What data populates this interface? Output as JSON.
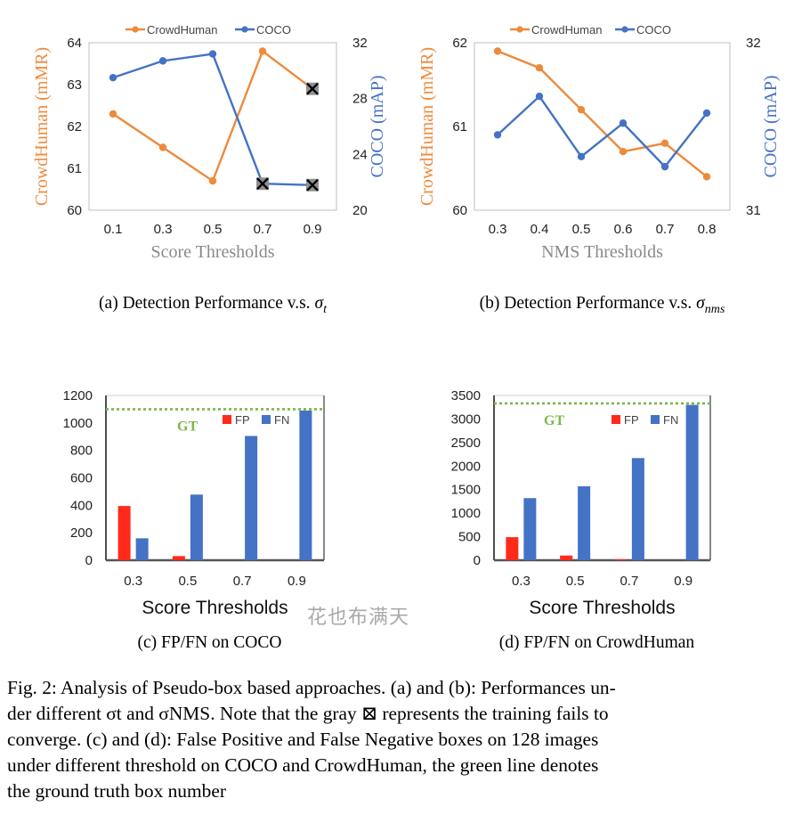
{
  "figure": {
    "label": "Fig. 2",
    "caption_lines": [
      "Fig. 2: Analysis of Pseudo-box based approaches. (a) and (b): Performances un-",
      "der different σt and σNMS. Note that the gray ⊠ represents the training fails to",
      "converge. (c) and (d): False Positive and False Negative boxes on 128 images",
      "under different threshold on COCO and CrowdHuman, the green line denotes",
      "the ground truth box number"
    ],
    "watermark": "花也布满天"
  },
  "colors": {
    "crowdhuman": "#ed8a3b",
    "coco": "#4472c4",
    "fp": "#ff2a1a",
    "fn": "#4472c4",
    "gt": "#7ab648",
    "fail_marker": "#909090"
  },
  "chart_data": [
    {
      "id": "a",
      "type": "line",
      "caption": "(a) Detection Performance v.s. σt",
      "caption_main": "(a) Detection Performance v.s. ",
      "caption_sym": "σ",
      "caption_sub": "t",
      "xlabel": "Score Thresholds",
      "ylabel_left": "CrowdHuman (mMR)",
      "ylabel_right": "COCO (mAP)",
      "categories": [
        "0.1",
        "0.3",
        "0.5",
        "0.7",
        "0.9"
      ],
      "ylim_left": [
        60,
        64
      ],
      "yticks_left": [
        "60",
        "61",
        "62",
        "63",
        "64"
      ],
      "ylim_right": [
        20,
        32
      ],
      "yticks_right": [
        "20",
        "24",
        "28",
        "32"
      ],
      "legend": [
        "CrowdHuman",
        "COCO"
      ],
      "series": [
        {
          "name": "CrowdHuman",
          "axis": "left",
          "values": [
            62.3,
            61.5,
            60.7,
            63.8,
            62.9
          ],
          "failed": [
            false,
            false,
            false,
            false,
            true
          ]
        },
        {
          "name": "COCO",
          "axis": "right",
          "values": [
            29.5,
            30.7,
            31.2,
            21.9,
            21.8
          ],
          "failed": [
            false,
            false,
            false,
            true,
            true
          ]
        }
      ]
    },
    {
      "id": "b",
      "type": "line",
      "caption": "(b) Detection Performance v.s. σnms",
      "caption_main": "(b) Detection Performance v.s. ",
      "caption_sym": "σ",
      "caption_sub": "nms",
      "xlabel": "NMS Thresholds",
      "ylabel_left": "CrowdHuman (mMR)",
      "ylabel_right": "COCO (mAP)",
      "categories": [
        "0.3",
        "0.4",
        "0.5",
        "0.6",
        "0.7",
        "0.8"
      ],
      "ylim_left": [
        60,
        62
      ],
      "yticks_left": [
        "60",
        "61",
        "62"
      ],
      "ylim_right": [
        31,
        32
      ],
      "yticks_right": [
        "31",
        "32"
      ],
      "legend": [
        "CrowdHuman",
        "COCO"
      ],
      "series": [
        {
          "name": "CrowdHuman",
          "axis": "left",
          "values": [
            61.9,
            61.7,
            61.2,
            60.7,
            60.8,
            60.4
          ]
        },
        {
          "name": "COCO",
          "axis": "right",
          "values": [
            31.45,
            31.68,
            31.32,
            31.52,
            31.26,
            31.58
          ]
        }
      ]
    },
    {
      "id": "c",
      "type": "bar",
      "caption": "(c) FP/FN on COCO",
      "xlabel": "Score Thresholds",
      "categories": [
        "0.3",
        "0.5",
        "0.7",
        "0.9"
      ],
      "ylim": [
        0,
        1200
      ],
      "yticks": [
        "0",
        "200",
        "400",
        "600",
        "800",
        "1000",
        "1200"
      ],
      "legend": [
        "FP",
        "FN"
      ],
      "gt_label": "GT",
      "gt_value": 1100,
      "series": [
        {
          "name": "FP",
          "values": [
            395,
            30,
            0,
            0
          ]
        },
        {
          "name": "FN",
          "values": [
            160,
            478,
            905,
            1090
          ]
        }
      ]
    },
    {
      "id": "d",
      "type": "bar",
      "caption": "(d) FP/FN on CrowdHuman",
      "xlabel": "Score Thresholds",
      "categories": [
        "0.3",
        "0.5",
        "0.7",
        "0.9"
      ],
      "ylim": [
        0,
        3500
      ],
      "yticks": [
        "0",
        "500",
        "1000",
        "1500",
        "2000",
        "2500",
        "3000",
        "3500"
      ],
      "legend": [
        "FP",
        "FN"
      ],
      "gt_label": "GT",
      "gt_value": 3330,
      "series": [
        {
          "name": "FP",
          "values": [
            490,
            100,
            20,
            0
          ]
        },
        {
          "name": "FN",
          "values": [
            1320,
            1570,
            2170,
            3300
          ]
        }
      ]
    }
  ]
}
